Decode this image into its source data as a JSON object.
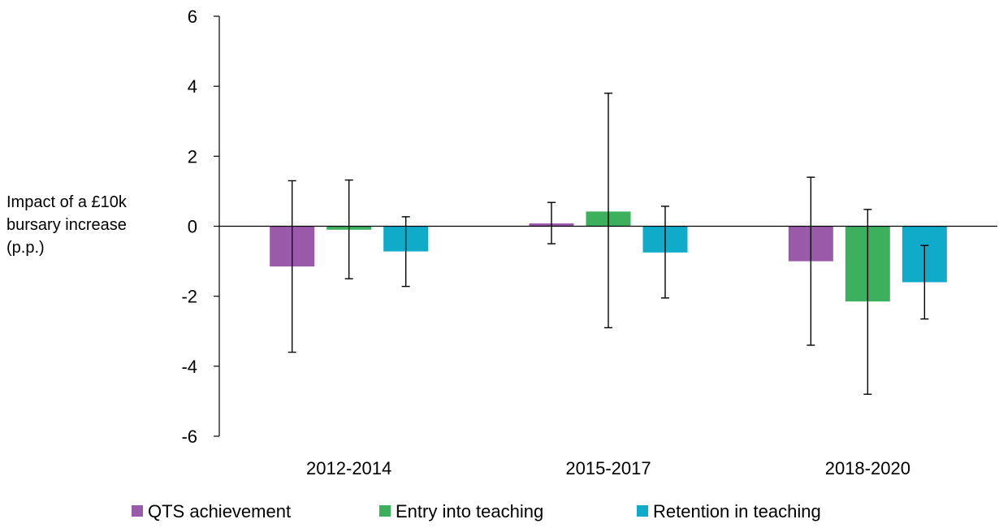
{
  "chart_data": {
    "type": "bar",
    "ylabel": "Impact of a £10k bursary increase (p.p.)",
    "ylabel_lines": [
      "Impact of a £10k",
      "bursary increase",
      "(p.p.)"
    ],
    "ylim": [
      -6,
      6
    ],
    "yticks": [
      -6,
      -4,
      -2,
      0,
      2,
      4,
      6
    ],
    "categories": [
      "2012-2014",
      "2015-2017",
      "2018-2020"
    ],
    "series": [
      {
        "name": "QTS achievement",
        "color": "#9b59a9",
        "values": [
          -1.15,
          0.08,
          -1.0
        ],
        "error_low": [
          -3.6,
          -0.5,
          -3.4
        ],
        "error_high": [
          1.3,
          0.68,
          1.4
        ]
      },
      {
        "name": "Entry into teaching",
        "color": "#3cb05c",
        "values": [
          -0.1,
          0.42,
          -2.15
        ],
        "error_low": [
          -1.5,
          -2.9,
          -4.8
        ],
        "error_high": [
          1.32,
          3.8,
          0.48
        ]
      },
      {
        "name": "Retention in teaching",
        "color": "#10abc9",
        "values": [
          -0.72,
          -0.75,
          -1.6
        ],
        "error_low": [
          -1.72,
          -2.05,
          -2.65
        ],
        "error_high": [
          0.27,
          0.57,
          -0.55
        ]
      }
    ],
    "legend_position": "bottom",
    "grid": false
  }
}
